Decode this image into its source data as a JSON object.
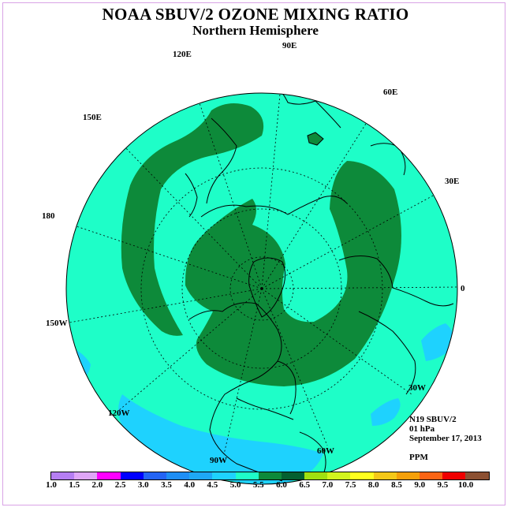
{
  "header": {
    "title": "NOAA SBUV/2 OZONE MIXING RATIO",
    "subtitle": "Northern Hemisphere"
  },
  "map": {
    "projection": "polar stereographic, north pole centered",
    "longitude_labels": [
      "90E",
      "60E",
      "30E",
      "0",
      "30W",
      "60W",
      "90W",
      "120W",
      "150W",
      "180",
      "150E",
      "120E"
    ],
    "fill_colors": {
      "band_4_5_to_5_0": "#1efec8",
      "band_5_0_to_5_5": "#0d8a3a",
      "band_4_0_to_4_5": "#1ed2fe",
      "coastline": "#000000"
    }
  },
  "info": {
    "instrument": "N19 SBUV/2",
    "level": "01 hPa",
    "date": "September 17, 2013",
    "units": "PPM"
  },
  "colorbar": {
    "ticks": [
      "1.0",
      "1.5",
      "2.0",
      "2.5",
      "3.0",
      "3.5",
      "4.0",
      "4.5",
      "5.0",
      "5.5",
      "6.0",
      "6.5",
      "7.0",
      "7.5",
      "8.0",
      "8.5",
      "9.0",
      "9.5",
      "10.0"
    ],
    "colors": [
      "#b57ef2",
      "#dfa6f7",
      "#ff00ff",
      "#0000ff",
      "#2464f5",
      "#1e8ef5",
      "#1ea8f5",
      "#1ed2fe",
      "#1efec8",
      "#0d8a3a",
      "#046030",
      "#a0e010",
      "#d2f51e",
      "#ffff1e",
      "#f5c818",
      "#f5a00a",
      "#fa6414",
      "#f00000",
      "#8c5032"
    ]
  }
}
